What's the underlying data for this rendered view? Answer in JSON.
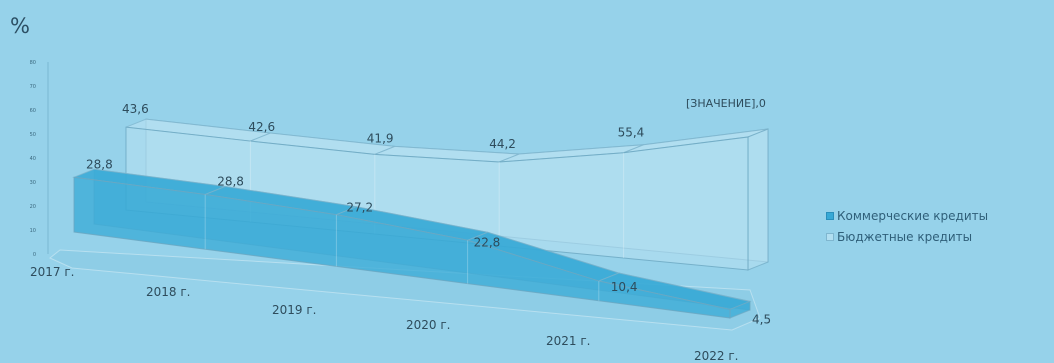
{
  "chart_data": {
    "type": "area",
    "view": "3d",
    "unit_label": "%",
    "categories": [
      "2017 г.",
      "2018 г.",
      "2019 г.",
      "2020 г.",
      "2021 г.",
      "2022 г."
    ],
    "series": [
      {
        "name": "Коммерческие кредиты",
        "values": [
          28.8,
          28.8,
          27.2,
          22.8,
          10.4,
          4.5
        ],
        "labels": [
          "28,8",
          "28,8",
          "27,2",
          "22,8",
          "10,4",
          "4,5"
        ],
        "color": "#37a9d6"
      },
      {
        "name": "Бюджетные кредиты",
        "values": [
          43.6,
          42.6,
          41.9,
          44.2,
          55.4,
          70.0
        ],
        "labels": [
          "43,6",
          "42,6",
          "41,9",
          "44,2",
          "55,4",
          "[ЗНАЧЕНИЕ],0"
        ],
        "color": "#bfe4f4"
      }
    ],
    "y_ticks": [
      "0",
      "10",
      "20",
      "30",
      "40",
      "50",
      "60",
      "70",
      "80"
    ],
    "ylim": [
      0,
      80
    ],
    "legend_position": "right",
    "grid": false
  }
}
